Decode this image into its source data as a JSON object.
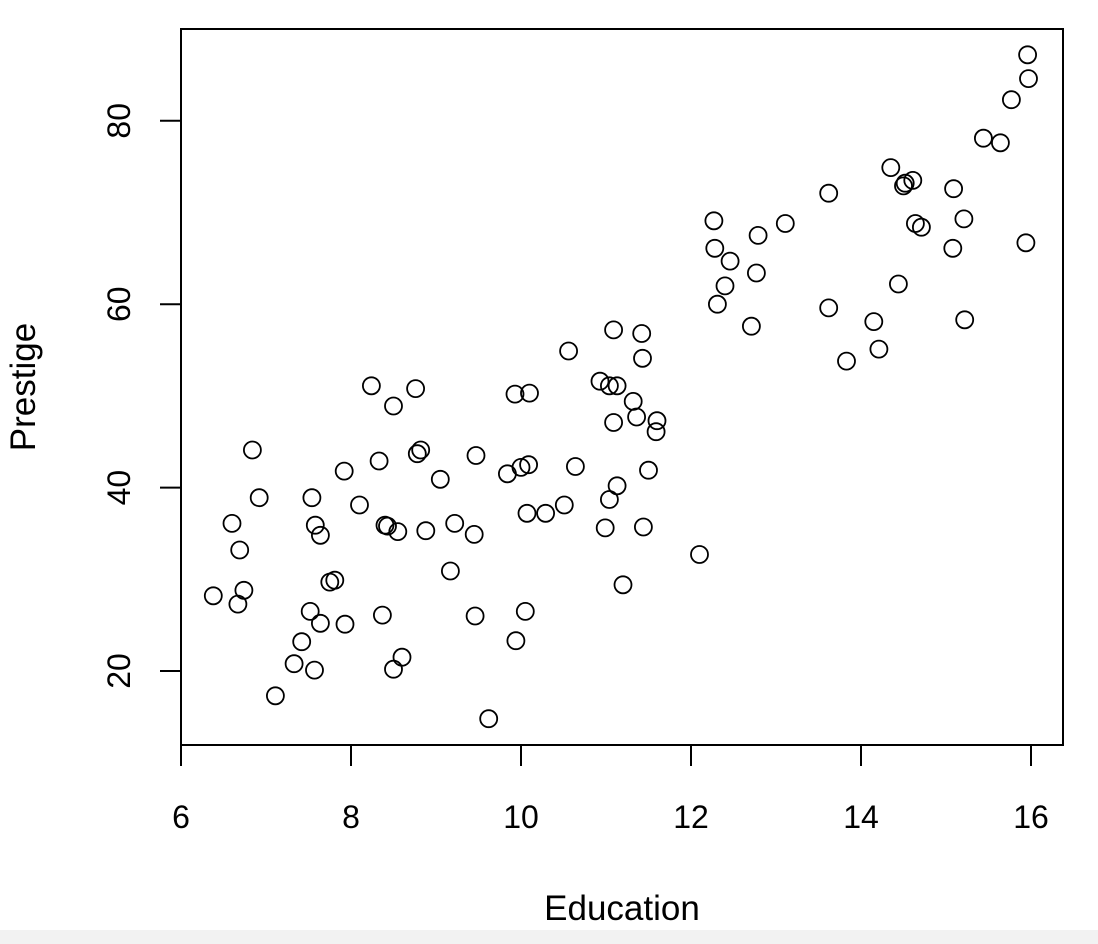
{
  "chart_data": {
    "type": "scatter",
    "title": "",
    "xlabel": "Education",
    "ylabel": "Prestige",
    "xlim": [
      6,
      16.4
    ],
    "ylim": [
      12,
      90
    ],
    "xticks": [
      6,
      8,
      10,
      12,
      14,
      16
    ],
    "yticks": [
      20,
      40,
      60,
      80
    ],
    "xtick_labels": [
      "6",
      "8",
      "10",
      "12",
      "14",
      "16"
    ],
    "ytick_labels": [
      "20",
      "40",
      "60",
      "80"
    ],
    "grid": false,
    "legend": "none",
    "marker": "open-circle",
    "color": "#000000",
    "points": [
      [
        6.38,
        28.2
      ],
      [
        6.6,
        36.1
      ],
      [
        6.67,
        27.3
      ],
      [
        6.69,
        33.2
      ],
      [
        6.74,
        28.8
      ],
      [
        6.84,
        44.1
      ],
      [
        6.92,
        38.9
      ],
      [
        7.11,
        17.3
      ],
      [
        7.33,
        20.8
      ],
      [
        7.42,
        23.2
      ],
      [
        7.52,
        26.5
      ],
      [
        7.54,
        38.9
      ],
      [
        7.57,
        20.1
      ],
      [
        7.58,
        35.9
      ],
      [
        7.64,
        25.2
      ],
      [
        7.64,
        34.8
      ],
      [
        7.75,
        29.7
      ],
      [
        7.81,
        29.9
      ],
      [
        7.92,
        41.8
      ],
      [
        7.93,
        25.1
      ],
      [
        8.1,
        38.1
      ],
      [
        8.24,
        51.1
      ],
      [
        8.33,
        42.9
      ],
      [
        8.37,
        26.1
      ],
      [
        8.4,
        35.9
      ],
      [
        8.43,
        35.8
      ],
      [
        8.5,
        20.2
      ],
      [
        8.5,
        48.9
      ],
      [
        8.55,
        35.2
      ],
      [
        8.6,
        21.5
      ],
      [
        8.76,
        50.8
      ],
      [
        8.78,
        43.7
      ],
      [
        8.82,
        44.1
      ],
      [
        8.88,
        35.3
      ],
      [
        9.05,
        40.9
      ],
      [
        9.17,
        30.9
      ],
      [
        9.22,
        36.1
      ],
      [
        9.45,
        34.9
      ],
      [
        9.46,
        26.0
      ],
      [
        9.47,
        43.5
      ],
      [
        9.62,
        14.8
      ],
      [
        9.84,
        41.5
      ],
      [
        9.93,
        50.2
      ],
      [
        9.94,
        23.3
      ],
      [
        10.0,
        42.2
      ],
      [
        10.05,
        26.5
      ],
      [
        10.07,
        37.2
      ],
      [
        10.09,
        42.5
      ],
      [
        10.1,
        50.3
      ],
      [
        10.29,
        37.2
      ],
      [
        10.51,
        38.1
      ],
      [
        10.56,
        54.9
      ],
      [
        10.64,
        42.3
      ],
      [
        10.93,
        51.6
      ],
      [
        10.99,
        35.6
      ],
      [
        11.04,
        38.7
      ],
      [
        11.04,
        51.1
      ],
      [
        11.09,
        57.2
      ],
      [
        11.09,
        47.1
      ],
      [
        11.13,
        51.1
      ],
      [
        11.13,
        40.2
      ],
      [
        11.2,
        29.4
      ],
      [
        11.32,
        49.4
      ],
      [
        11.36,
        47.7
      ],
      [
        11.42,
        56.8
      ],
      [
        11.43,
        54.1
      ],
      [
        11.44,
        35.7
      ],
      [
        11.5,
        41.9
      ],
      [
        11.59,
        46.1
      ],
      [
        11.6,
        47.3
      ],
      [
        12.1,
        32.7
      ],
      [
        12.27,
        69.1
      ],
      [
        12.28,
        66.1
      ],
      [
        12.31,
        60.0
      ],
      [
        12.4,
        62.0
      ],
      [
        12.46,
        64.7
      ],
      [
        12.71,
        57.6
      ],
      [
        12.77,
        63.4
      ],
      [
        12.79,
        67.5
      ],
      [
        13.11,
        68.8
      ],
      [
        13.62,
        59.6
      ],
      [
        13.62,
        72.1
      ],
      [
        13.83,
        53.8
      ],
      [
        14.15,
        58.1
      ],
      [
        14.21,
        55.1
      ],
      [
        14.35,
        74.9
      ],
      [
        14.44,
        62.2
      ],
      [
        14.5,
        72.9
      ],
      [
        14.52,
        73.2
      ],
      [
        14.61,
        73.5
      ],
      [
        14.64,
        68.8
      ],
      [
        14.71,
        68.4
      ],
      [
        15.08,
        66.1
      ],
      [
        15.09,
        72.6
      ],
      [
        15.21,
        69.3
      ],
      [
        15.22,
        58.3
      ],
      [
        15.44,
        78.1
      ],
      [
        15.64,
        77.6
      ],
      [
        15.77,
        82.3
      ],
      [
        15.94,
        66.7
      ],
      [
        15.96,
        87.2
      ],
      [
        15.97,
        84.6
      ]
    ]
  }
}
